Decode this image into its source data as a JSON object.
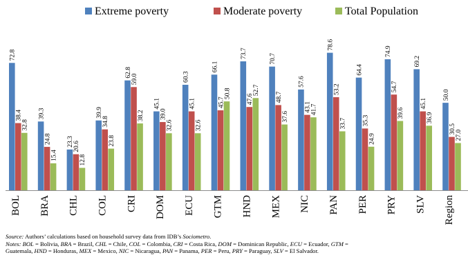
{
  "chart_data": {
    "type": "bar",
    "categories": [
      "BOL",
      "BRA",
      "CHL",
      "COL",
      "CRI",
      "DOM",
      "ECU",
      "GTM",
      "HND",
      "MEX",
      "NIC",
      "PAN",
      "PER",
      "PRY",
      "SLV",
      "Region"
    ],
    "series": [
      {
        "name": "Extreme poverty",
        "color": "#4f81bd",
        "values": [
          72.8,
          39.3,
          23.3,
          39.9,
          62.8,
          45.1,
          60.3,
          66.1,
          73.7,
          70.7,
          57.6,
          78.6,
          64.4,
          74.9,
          69.2,
          50.0
        ],
        "labels": [
          "72.8",
          "39.3",
          "23.3",
          "39.9",
          "62.8",
          "45.1",
          "60.3",
          "66.1",
          "73.7",
          "70.7",
          "57.6",
          "78.6",
          "64.4",
          "74.9",
          "69.2",
          "50.0"
        ]
      },
      {
        "name": "Moderate poverty",
        "color": "#c0504d",
        "values": [
          38.4,
          24.8,
          20.6,
          34.8,
          59.0,
          39.0,
          45.1,
          45.7,
          47.6,
          48.7,
          43.1,
          53.2,
          35.3,
          54.7,
          45.1,
          30.5
        ],
        "labels": [
          "38.4",
          "24.8",
          "20.6",
          "34.8",
          "59.0",
          "39.0",
          "45.1",
          "45.7",
          "47.6",
          "48.7",
          "43.1",
          "53.2",
          "35.3",
          "54.7",
          "45.1",
          "30.5"
        ]
      },
      {
        "name": "Total Population",
        "color": "#9bbb59",
        "values": [
          32.8,
          15.4,
          12.8,
          23.8,
          38.2,
          32.6,
          32.6,
          50.8,
          52.7,
          37.6,
          41.7,
          33.7,
          24.9,
          39.6,
          36.9,
          27.0
        ],
        "labels": [
          "32.8",
          "15.4",
          "12.8",
          "23.8",
          "38.2",
          "32.6",
          "32.6",
          "50.8",
          "52.7",
          "37.6",
          "41.7",
          "33.7",
          "24.9",
          "39.6",
          "36.9",
          "27.0"
        ]
      }
    ],
    "ylim": [
      0,
      80
    ],
    "legend_position": "top",
    "grid": false,
    "xlabel": "",
    "ylabel": ""
  },
  "source": {
    "label": "Source:",
    "text_before": " Authors’ calculations based on household survey data from IDB’s ",
    "italic": "Sociometro",
    "text_after": "."
  },
  "notes": {
    "line1": [
      {
        "t": "Notes:",
        "i": true
      },
      {
        "t": " ",
        "i": false
      },
      {
        "t": "BOL",
        "i": true
      },
      {
        "t": " = Bolivia, ",
        "i": false
      },
      {
        "t": "BRA",
        "i": true
      },
      {
        "t": "  = Brazil, ",
        "i": false
      },
      {
        "t": "CHL",
        "i": true
      },
      {
        "t": " = Chile, ",
        "i": false
      },
      {
        "t": "COL",
        "i": true
      },
      {
        "t": " = Colombia, ",
        "i": false
      },
      {
        "t": "CRI",
        "i": true
      },
      {
        "t": " = Costa Rica, ",
        "i": false
      },
      {
        "t": "DOM",
        "i": true
      },
      {
        "t": " = Dominican Republic, ",
        "i": false
      },
      {
        "t": "ECU",
        "i": true
      },
      {
        "t": " = Ecuador, ",
        "i": false
      },
      {
        "t": "GTM",
        "i": true
      },
      {
        "t": " =",
        "i": false
      }
    ],
    "line2": [
      {
        "t": "Guatemala, ",
        "i": false
      },
      {
        "t": "HND",
        "i": true
      },
      {
        "t": " = Honduras, ",
        "i": false
      },
      {
        "t": "MEX",
        "i": true
      },
      {
        "t": " = Mexico, ",
        "i": false
      },
      {
        "t": "NIC",
        "i": true
      },
      {
        "t": " = Nicaragua, ",
        "i": false
      },
      {
        "t": "PAN",
        "i": true
      },
      {
        "t": " = Panama, ",
        "i": false
      },
      {
        "t": "PER",
        "i": true
      },
      {
        "t": " = Peru, ",
        "i": false
      },
      {
        "t": "PRY",
        "i": true
      },
      {
        "t": " =  Paraguay, ",
        "i": false
      },
      {
        "t": "SLV",
        "i": true
      },
      {
        "t": " =  El Salvador.",
        "i": false
      }
    ]
  }
}
